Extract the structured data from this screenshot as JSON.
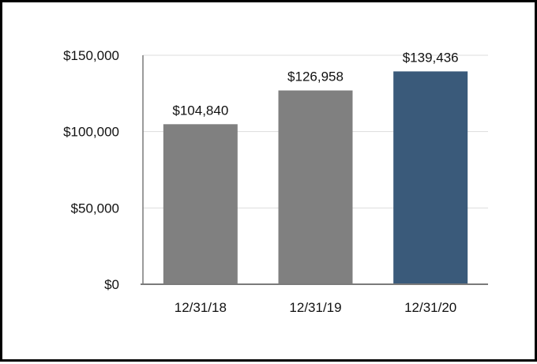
{
  "chart_data": {
    "type": "bar",
    "categories": [
      "12/31/18",
      "12/31/19",
      "12/31/20"
    ],
    "values": [
      104840,
      126958,
      139436
    ],
    "value_labels": [
      "$104,840",
      "$126,958",
      "$139,436"
    ],
    "bar_colors": [
      "#808080",
      "#808080",
      "#3a5a7a"
    ],
    "yticks": [
      0,
      50000,
      100000,
      150000
    ],
    "ytick_labels": [
      "$0",
      "$50,000",
      "$100,000",
      "$150,000"
    ],
    "ylim": [
      0,
      150000
    ],
    "title": "",
    "xlabel": "",
    "ylabel": "",
    "grid": true,
    "legend": "none"
  }
}
